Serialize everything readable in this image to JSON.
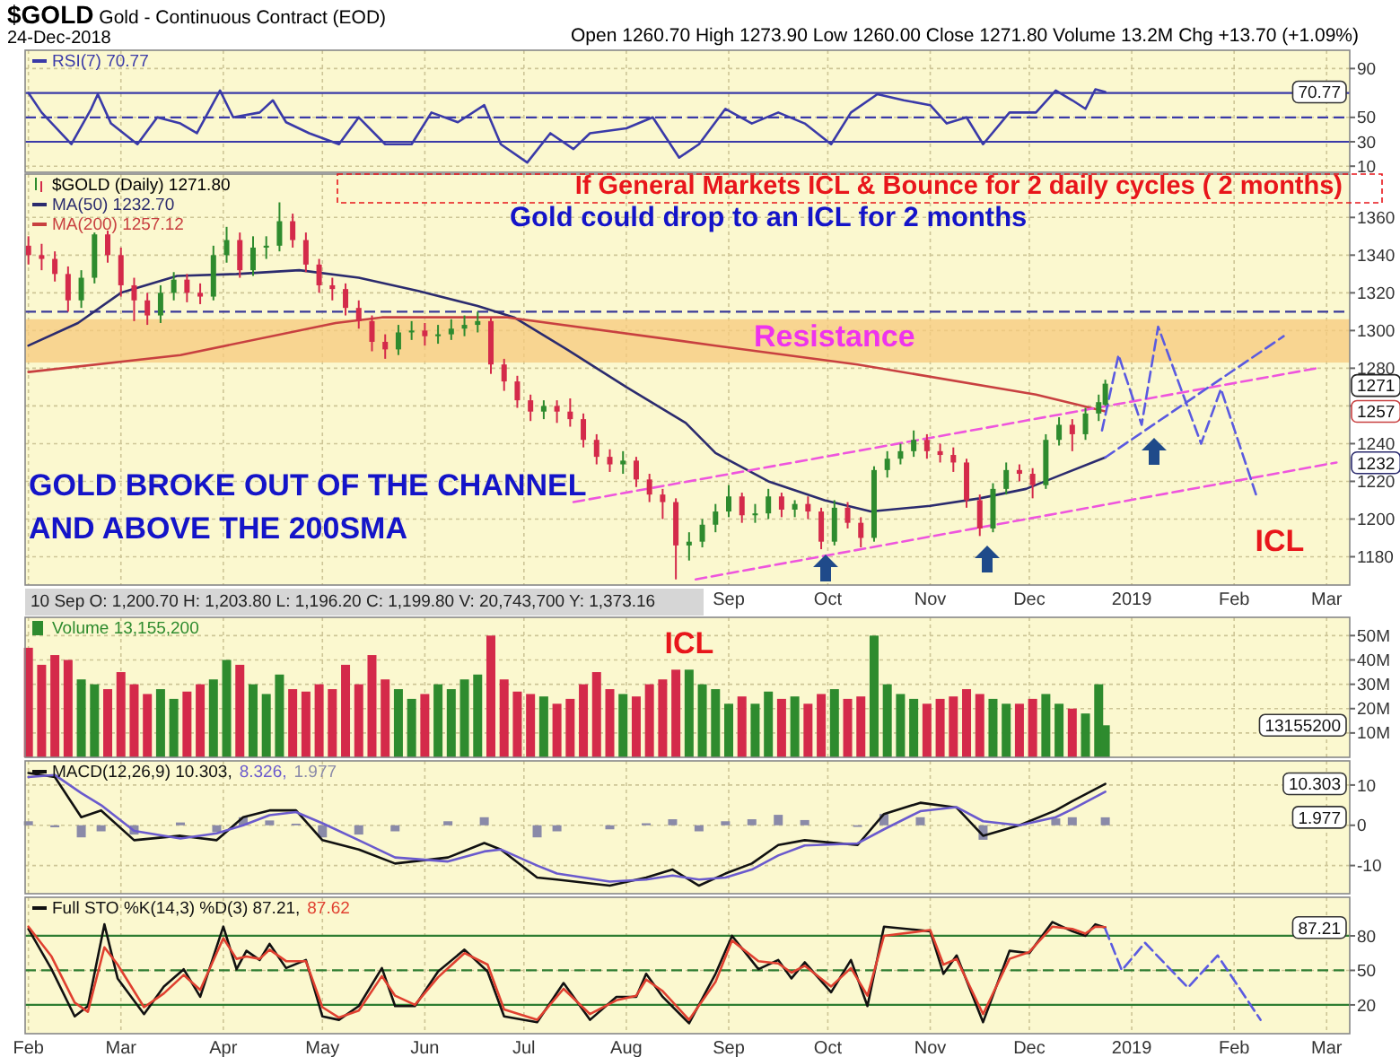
{
  "chart_data": [
    {
      "type": "line",
      "title": "$GOLD Gold - Continuous Contract (EOD)",
      "subtitle": "24-Dec-2018",
      "legend": "top left",
      "grid": true,
      "tick_labels": "y",
      "annotations": [
        "Open 1260.70 High 1273.90 Low 1260.00 Close 1271.80 Volume 13.2M Chg +13.70 (+1.09%)",
        "70.77"
      ],
      "xlim": [
        "2018-01-31",
        "2019-03-08"
      ],
      "xticks": [
        {
          "value": "2018-02-01",
          "label": null
        },
        {
          "value": "2018-03-01",
          "label": null
        },
        {
          "value": "2018-04-01",
          "label": null
        },
        {
          "value": "2018-05-01",
          "label": null
        },
        {
          "value": "2018-06-01",
          "label": null
        },
        {
          "value": "2018-07-01",
          "label": null
        },
        {
          "value": "2018-08-01",
          "label": null
        },
        {
          "value": "2018-09-01",
          "label": null
        },
        {
          "value": "2018-10-01",
          "label": null
        },
        {
          "value": "2018-11-01",
          "label": null
        },
        {
          "value": "2018-12-01",
          "label": null
        },
        {
          "value": "2019-01-01",
          "label": null
        },
        {
          "value": "2019-02-01",
          "label": null
        },
        {
          "value": "2019-03-01",
          "label": null
        }
      ],
      "ylim": [
        5,
        105
      ],
      "yticks": [
        10,
        30,
        50,
        90
      ],
      "ref_lines": [
        {
          "axis": "y",
          "value": 70,
          "color": "#3a3aa8"
        },
        {
          "axis": "y",
          "value": 30,
          "color": "#3a3aa8"
        },
        {
          "axis": "y",
          "value": 50,
          "color": "#3a3aa8",
          "line_style": "dashed"
        }
      ],
      "series": [
        {
          "name": "RSI(7) 70.77",
          "color": "#3a3aa8",
          "x": [
            "2018-02-01",
            "2018-02-05",
            "2018-02-14",
            "2018-02-20",
            "2018-02-22",
            "2018-02-26",
            "2018-03-06",
            "2018-03-12",
            "2018-03-19",
            "2018-03-24",
            "2018-03-31",
            "2018-04-04",
            "2018-04-12",
            "2018-04-16",
            "2018-04-20",
            "2018-04-27",
            "2018-05-06",
            "2018-05-12",
            "2018-05-20",
            "2018-05-28",
            "2018-06-03",
            "2018-06-11",
            "2018-06-19",
            "2018-06-24",
            "2018-07-02",
            "2018-07-09",
            "2018-07-16",
            "2018-07-21",
            "2018-08-01",
            "2018-08-09",
            "2018-08-17",
            "2018-08-23",
            "2018-08-31",
            "2018-09-08",
            "2018-09-16",
            "2018-09-24",
            "2018-10-02",
            "2018-10-08",
            "2018-10-16",
            "2018-10-24",
            "2018-11-01",
            "2018-11-06",
            "2018-11-12",
            "2018-11-17",
            "2018-11-25",
            "2018-12-03",
            "2018-12-09",
            "2018-12-14",
            "2018-12-18",
            "2018-12-21",
            "2018-12-24"
          ],
          "values": [
            70,
            54,
            28,
            57,
            69,
            45,
            28,
            50,
            45,
            37,
            72,
            50,
            54,
            64,
            46,
            37,
            28,
            50,
            28,
            28,
            54,
            46,
            60,
            28,
            13,
            37,
            24,
            37,
            41,
            50,
            17,
            28,
            57,
            45,
            54,
            45,
            28,
            54,
            69,
            64,
            60,
            45,
            50,
            28,
            54,
            54,
            72,
            64,
            57,
            73,
            70.77
          ]
        }
      ]
    },
    {
      "type": "candlestick",
      "legend": "top left",
      "grid": true,
      "xlim": [
        "2018-01-31",
        "2019-03-08"
      ],
      "xticks": [
        {
          "value": "2018-02-01",
          "label": null
        },
        {
          "value": "2018-03-01",
          "label": null
        },
        {
          "value": "2018-04-01",
          "label": null
        },
        {
          "value": "2018-05-01",
          "label": null
        },
        {
          "value": "2018-06-01",
          "label": null
        },
        {
          "value": "2018-07-01",
          "label": null
        },
        {
          "value": "2018-08-01",
          "label": null
        },
        {
          "value": "2018-09-01",
          "label": "Sep"
        },
        {
          "value": "2018-10-01",
          "label": "Oct"
        },
        {
          "value": "2018-11-01",
          "label": "Nov"
        },
        {
          "value": "2018-12-01",
          "label": "Dec"
        },
        {
          "value": "2019-01-01",
          "label": "2019"
        },
        {
          "value": "2019-02-01",
          "label": "Feb"
        },
        {
          "value": "2019-03-01",
          "label": "Mar"
        }
      ],
      "ylim": [
        1165,
        1383
      ],
      "yticks": [
        1180,
        1200,
        1220,
        1240,
        {
          "value": 1260,
          "label": null
        },
        1280,
        1300,
        1320,
        1340,
        1360
      ],
      "bands": [
        {
          "axis": "y",
          "from": 1283,
          "to": 1306,
          "label": "Resistance",
          "color": "#f7c97c"
        }
      ],
      "ref_lines": [
        {
          "axis": "y",
          "value": 1310,
          "color": "#3a3a9a",
          "line_style": "dashed"
        }
      ],
      "annotations": [
        "If General Markets ICL & Bounce for 2 daily cycles  ( 2 months)",
        "Gold could drop to an ICL for 2 months",
        "GOLD BROKE OUT OF THE CHANNEL AND ABOVE THE 200SMA",
        "ICL",
        "ICL",
        "10 Sep O: 1,200.70 H: 1,203.80 L: 1,196.20 C: 1,199.80 V: 20,743,700 Y: 1,373.16",
        "1271",
        "1257",
        "1232"
      ],
      "series": [
        {
          "name": "$GOLD (Daily) 1271.80",
          "colors": [
            "#d42a4a",
            "#d42a4a",
            "#d42a4a",
            "#d42a4a",
            "#2e8b2e",
            "#2e8b2e",
            "#d42a4a",
            "#d42a4a",
            "#d42a4a",
            "#d42a4a",
            "#2e8b2e",
            "#2e8b2e",
            "#d42a4a",
            "#d42a4a",
            "#2e8b2e",
            "#2e8b2e",
            "#d42a4a",
            "#2e8b2e",
            "#2e8b2e",
            "#2e8b2e",
            "#d42a4a",
            "#d42a4a",
            "#d42a4a",
            "#d42a4a",
            "#d42a4a",
            "#d42a4a",
            "#d42a4a",
            "#d42a4a",
            "#2e8b2e",
            "#2e8b2e",
            "#d42a4a",
            "#2e8b2e",
            "#2e8b2e",
            "#2e8b2e",
            "#2e8b2e",
            "#d42a4a",
            "#d42a4a",
            "#d42a4a",
            "#d42a4a",
            "#2e8b2e",
            "#d42a4a",
            "#d42a4a",
            "#d42a4a",
            "#d42a4a",
            "#d42a4a",
            "#2e8b2e",
            "#d42a4a",
            "#d42a4a",
            "#d42a4a",
            "#d42a4a",
            "#2e8b2e",
            "#2e8b2e",
            "#2e8b2e",
            "#2e8b2e",
            "#d42a4a",
            "#2e8b2e",
            "#2e8b2e",
            "#d42a4a",
            "#2e8b2e",
            "#d42a4a",
            "#d42a4a",
            "#2e8b2e",
            "#d42a4a",
            "#d42a4a",
            "#2e8b2e",
            "#2e8b2e",
            "#2e8b2e",
            "#2e8b2e",
            "#d42a4a",
            "#d42a4a",
            "#d42a4a",
            "#d42a4a",
            "#d42a4a",
            "#2e8b2e",
            "#2e8b2e",
            "#d42a4a",
            "#d42a4a",
            "#2e8b2e",
            "#2e8b2e",
            "#d42a4a",
            "#2e8b2e",
            "#2e8b2e",
            "#2e8b2e"
          ],
          "x": [
            "2018-02-01",
            "2018-02-05",
            "2018-02-09",
            "2018-02-13",
            "2018-02-17",
            "2018-02-21",
            "2018-02-25",
            "2018-03-01",
            "2018-03-05",
            "2018-03-09",
            "2018-03-13",
            "2018-03-17",
            "2018-03-21",
            "2018-03-25",
            "2018-03-29",
            "2018-04-02",
            "2018-04-06",
            "2018-04-10",
            "2018-04-14",
            "2018-04-18",
            "2018-04-22",
            "2018-04-26",
            "2018-04-30",
            "2018-05-04",
            "2018-05-08",
            "2018-05-12",
            "2018-05-16",
            "2018-05-20",
            "2018-05-24",
            "2018-05-28",
            "2018-06-01",
            "2018-06-05",
            "2018-06-09",
            "2018-06-13",
            "2018-06-17",
            "2018-06-21",
            "2018-06-25",
            "2018-06-29",
            "2018-07-03",
            "2018-07-07",
            "2018-07-11",
            "2018-07-15",
            "2018-07-19",
            "2018-07-23",
            "2018-07-27",
            "2018-07-31",
            "2018-08-04",
            "2018-08-08",
            "2018-08-12",
            "2018-08-16",
            "2018-08-20",
            "2018-08-24",
            "2018-08-28",
            "2018-09-01",
            "2018-09-05",
            "2018-09-09",
            "2018-09-13",
            "2018-09-17",
            "2018-09-21",
            "2018-09-25",
            "2018-09-29",
            "2018-10-03",
            "2018-10-07",
            "2018-10-11",
            "2018-10-15",
            "2018-10-19",
            "2018-10-23",
            "2018-10-27",
            "2018-10-31",
            "2018-11-04",
            "2018-11-08",
            "2018-11-12",
            "2018-11-16",
            "2018-11-20",
            "2018-11-24",
            "2018-11-28",
            "2018-12-02",
            "2018-12-06",
            "2018-12-10",
            "2018-12-14",
            "2018-12-18",
            "2018-12-22",
            "2018-12-24"
          ],
          "ohlc": [
            [
              1345,
              1350,
              1335,
              1340
            ],
            [
              1340,
              1346,
              1332,
              1338
            ],
            [
              1338,
              1342,
              1326,
              1330
            ],
            [
              1330,
              1334,
              1310,
              1316
            ],
            [
              1316,
              1332,
              1312,
              1328
            ],
            [
              1328,
              1352,
              1325,
              1351
            ],
            [
              1351,
              1353,
              1336,
              1340
            ],
            [
              1340,
              1344,
              1318,
              1324
            ],
            [
              1324,
              1328,
              1305,
              1316
            ],
            [
              1316,
              1320,
              1303,
              1308
            ],
            [
              1308,
              1324,
              1304,
              1320
            ],
            [
              1320,
              1331,
              1316,
              1327
            ],
            [
              1327,
              1330,
              1315,
              1320
            ],
            [
              1320,
              1325,
              1314,
              1318
            ],
            [
              1318,
              1345,
              1316,
              1340
            ],
            [
              1340,
              1355,
              1336,
              1348
            ],
            [
              1348,
              1352,
              1328,
              1332
            ],
            [
              1332,
              1350,
              1329,
              1344
            ],
            [
              1344,
              1350,
              1338,
              1345
            ],
            [
              1345,
              1368,
              1342,
              1358
            ],
            [
              1358,
              1362,
              1344,
              1348
            ],
            [
              1348,
              1352,
              1331,
              1335
            ],
            [
              1335,
              1338,
              1320,
              1324
            ],
            [
              1324,
              1328,
              1316,
              1322
            ],
            [
              1322,
              1325,
              1308,
              1312
            ],
            [
              1312,
              1316,
              1301,
              1305
            ],
            [
              1305,
              1308,
              1289,
              1294
            ],
            [
              1294,
              1298,
              1285,
              1290
            ],
            [
              1290,
              1303,
              1287,
              1299
            ],
            [
              1299,
              1305,
              1295,
              1300
            ],
            [
              1300,
              1304,
              1292,
              1297
            ],
            [
              1297,
              1303,
              1293,
              1298
            ],
            [
              1298,
              1306,
              1295,
              1301
            ],
            [
              1301,
              1308,
              1297,
              1303
            ],
            [
              1303,
              1310,
              1299,
              1305
            ],
            [
              1305,
              1307,
              1277,
              1282
            ],
            [
              1282,
              1285,
              1268,
              1273
            ],
            [
              1273,
              1276,
              1259,
              1263
            ],
            [
              1263,
              1266,
              1252,
              1257
            ],
            [
              1257,
              1263,
              1253,
              1260
            ],
            [
              1260,
              1263,
              1251,
              1257
            ],
            [
              1257,
              1264,
              1249,
              1253
            ],
            [
              1253,
              1256,
              1238,
              1242
            ],
            [
              1242,
              1245,
              1229,
              1233
            ],
            [
              1233,
              1237,
              1225,
              1229
            ],
            [
              1229,
              1236,
              1224,
              1231
            ],
            [
              1231,
              1233,
              1217,
              1221
            ],
            [
              1221,
              1224,
              1209,
              1213
            ],
            [
              1213,
              1216,
              1200,
              1209
            ],
            [
              1209,
              1211,
              1168,
              1186
            ],
            [
              1186,
              1193,
              1178,
              1188
            ],
            [
              1188,
              1200,
              1185,
              1197
            ],
            [
              1197,
              1208,
              1193,
              1204
            ],
            [
              1204,
              1218,
              1201,
              1212
            ],
            [
              1212,
              1214,
              1198,
              1202
            ],
            [
              1202,
              1208,
              1198,
              1203
            ],
            [
              1203,
              1216,
              1200,
              1212
            ],
            [
              1212,
              1214,
              1201,
              1205
            ],
            [
              1205,
              1210,
              1201,
              1208
            ],
            [
              1208,
              1212,
              1200,
              1204
            ],
            [
              1204,
              1206,
              1184,
              1188
            ],
            [
              1188,
              1210,
              1186,
              1206
            ],
            [
              1206,
              1209,
              1195,
              1198
            ],
            [
              1198,
              1201,
              1185,
              1190
            ],
            [
              1190,
              1228,
              1188,
              1226
            ],
            [
              1226,
              1236,
              1222,
              1232
            ],
            [
              1232,
              1240,
              1229,
              1236
            ],
            [
              1236,
              1247,
              1233,
              1242
            ],
            [
              1242,
              1245,
              1232,
              1236
            ],
            [
              1236,
              1240,
              1230,
              1234
            ],
            [
              1234,
              1238,
              1225,
              1230
            ],
            [
              1230,
              1232,
              1206,
              1210
            ],
            [
              1210,
              1213,
              1191,
              1195
            ],
            [
              1195,
              1219,
              1193,
              1216
            ],
            [
              1216,
              1230,
              1213,
              1226
            ],
            [
              1226,
              1229,
              1220,
              1224
            ],
            [
              1224,
              1227,
              1211,
              1218
            ],
            [
              1218,
              1245,
              1216,
              1242
            ],
            [
              1242,
              1254,
              1239,
              1250
            ],
            [
              1250,
              1253,
              1236,
              1245
            ],
            [
              1245,
              1259,
              1242,
              1256
            ],
            [
              1256,
              1266,
              1252,
              1262
            ],
            [
              1260.7,
              1273.9,
              1260,
              1271.8
            ]
          ]
        },
        {
          "type": "line",
          "name": "MA(50) 1232.70",
          "color": "#2b2b6e",
          "x": [
            "2018-02-01",
            "2018-02-16",
            "2018-03-01",
            "2018-03-18",
            "2018-04-05",
            "2018-04-24",
            "2018-05-12",
            "2018-05-30",
            "2018-06-17",
            "2018-06-28",
            "2018-07-14",
            "2018-08-01",
            "2018-08-19",
            "2018-08-28",
            "2018-09-13",
            "2018-09-30",
            "2018-10-14",
            "2018-11-01",
            "2018-11-16",
            "2018-11-30",
            "2018-12-10",
            "2018-12-24"
          ],
          "values": [
            1292,
            1304,
            1320,
            1329,
            1330,
            1332,
            1328,
            1321,
            1313,
            1307,
            1290,
            1270,
            1251,
            1235,
            1220,
            1210,
            1204,
            1207,
            1211,
            1216,
            1223,
            1232.7
          ]
        },
        {
          "type": "line",
          "name": "MA(200) 1257.12",
          "color": "#c84040",
          "x": [
            "2018-02-01",
            "2018-03-19",
            "2018-05-05",
            "2018-05-19",
            "2018-06-26",
            "2018-08-28",
            "2018-10-10",
            "2018-12-03",
            "2018-12-24"
          ],
          "values": [
            1278,
            1287,
            1304,
            1307,
            1307,
            1292,
            1282,
            1266,
            1257.12
          ]
        },
        {
          "type": "line",
          "color": "#ee55dd",
          "line_style": "dashed",
          "x": [
            "2018-07-16",
            "2019-02-26"
          ],
          "values": [
            1209,
            1280
          ]
        },
        {
          "type": "line",
          "color": "#ee55dd",
          "line_style": "dashed",
          "x": [
            "2018-08-22",
            "2019-03-04"
          ],
          "values": [
            1168,
            1230
          ]
        },
        {
          "type": "line",
          "color": "#5a5ae0",
          "line_style": "dashed",
          "x": [
            "2018-12-23",
            "2018-12-28",
            "2019-01-04",
            "2019-01-09",
            "2019-01-22",
            "2019-01-28",
            "2019-02-08"
          ],
          "values": [
            1247,
            1287,
            1250,
            1302,
            1240,
            1269,
            1211
          ]
        },
        {
          "type": "line",
          "color": "#5a5ae0",
          "line_style": "dashed",
          "x": [
            "2018-12-24",
            "2019-02-16"
          ],
          "values": [
            1232.7,
            1297
          ]
        }
      ]
    },
    {
      "type": "bar",
      "legend": "top left",
      "grid": true,
      "tick_labels": "y",
      "xlim": [
        "2018-01-31",
        "2019-03-08"
      ],
      "xticks": [
        {
          "value": "2018-02-01",
          "label": null
        },
        {
          "value": "2018-03-01",
          "label": null
        },
        {
          "value": "2018-04-01",
          "label": null
        },
        {
          "value": "2018-05-01",
          "label": null
        },
        {
          "value": "2018-06-01",
          "label": null
        },
        {
          "value": "2018-07-01",
          "label": null
        },
        {
          "value": "2018-08-01",
          "label": null
        },
        {
          "value": "2018-09-01",
          "label": null
        },
        {
          "value": "2018-10-01",
          "label": null
        },
        {
          "value": "2018-11-01",
          "label": null
        },
        {
          "value": "2018-12-01",
          "label": null
        },
        {
          "value": "2019-01-01",
          "label": null
        },
        {
          "value": "2019-02-01",
          "label": null
        },
        {
          "value": "2019-03-01",
          "label": null
        }
      ],
      "ylim": [
        0,
        57.5
      ],
      "yticks": [
        {
          "value": 10,
          "label": "10M"
        },
        {
          "value": 20,
          "label": "20M"
        },
        {
          "value": 30,
          "label": "30M"
        },
        {
          "value": 40,
          "label": "40M"
        },
        {
          "value": 50,
          "label": "50M"
        }
      ],
      "annotations": [
        "13155200"
      ],
      "x": [
        "2018-02-01",
        "2018-02-05",
        "2018-02-09",
        "2018-02-13",
        "2018-02-17",
        "2018-02-21",
        "2018-02-25",
        "2018-03-01",
        "2018-03-05",
        "2018-03-09",
        "2018-03-13",
        "2018-03-17",
        "2018-03-21",
        "2018-03-25",
        "2018-03-29",
        "2018-04-02",
        "2018-04-06",
        "2018-04-10",
        "2018-04-14",
        "2018-04-18",
        "2018-04-22",
        "2018-04-26",
        "2018-04-30",
        "2018-05-04",
        "2018-05-08",
        "2018-05-12",
        "2018-05-16",
        "2018-05-20",
        "2018-05-24",
        "2018-05-28",
        "2018-06-01",
        "2018-06-05",
        "2018-06-09",
        "2018-06-13",
        "2018-06-17",
        "2018-06-21",
        "2018-06-25",
        "2018-06-29",
        "2018-07-03",
        "2018-07-07",
        "2018-07-11",
        "2018-07-15",
        "2018-07-19",
        "2018-07-23",
        "2018-07-27",
        "2018-07-31",
        "2018-08-04",
        "2018-08-08",
        "2018-08-12",
        "2018-08-16",
        "2018-08-20",
        "2018-08-24",
        "2018-08-28",
        "2018-09-01",
        "2018-09-05",
        "2018-09-09",
        "2018-09-13",
        "2018-09-17",
        "2018-09-21",
        "2018-09-25",
        "2018-09-29",
        "2018-10-03",
        "2018-10-07",
        "2018-10-11",
        "2018-10-15",
        "2018-10-19",
        "2018-10-23",
        "2018-10-27",
        "2018-10-31",
        "2018-11-04",
        "2018-11-08",
        "2018-11-12",
        "2018-11-16",
        "2018-11-20",
        "2018-11-24",
        "2018-11-28",
        "2018-12-02",
        "2018-12-06",
        "2018-12-10",
        "2018-12-14",
        "2018-12-18",
        "2018-12-22",
        "2018-12-24"
      ],
      "series": [
        {
          "name": "Volume 13,155,200",
          "color": "#2e8b2e",
          "values": [
            45,
            38,
            42,
            40,
            32,
            30,
            28,
            35,
            30,
            26,
            28,
            24,
            27,
            30,
            32,
            40,
            38,
            30,
            26,
            34,
            28,
            27,
            30,
            28,
            38,
            30,
            42,
            32,
            28,
            24,
            26,
            30,
            28,
            32,
            34,
            50,
            32,
            27,
            26,
            25,
            22,
            24,
            30,
            35,
            28,
            26,
            25,
            30,
            32,
            36,
            36,
            30,
            28,
            22,
            25,
            22,
            27,
            24,
            25,
            22,
            26,
            28,
            24,
            25,
            50,
            30,
            26,
            24,
            22,
            24,
            25,
            28,
            26,
            24,
            22,
            22,
            24,
            26,
            22,
            20,
            18,
            30,
            13.155
          ],
          "colors": [
            "#d42a4a",
            "#d42a4a",
            "#d42a4a",
            "#d42a4a",
            "#2e8b2e",
            "#2e8b2e",
            "#d42a4a",
            "#d42a4a",
            "#d42a4a",
            "#d42a4a",
            "#2e8b2e",
            "#2e8b2e",
            "#d42a4a",
            "#d42a4a",
            "#2e8b2e",
            "#2e8b2e",
            "#d42a4a",
            "#2e8b2e",
            "#2e8b2e",
            "#2e8b2e",
            "#d42a4a",
            "#d42a4a",
            "#d42a4a",
            "#d42a4a",
            "#d42a4a",
            "#d42a4a",
            "#d42a4a",
            "#d42a4a",
            "#2e8b2e",
            "#2e8b2e",
            "#d42a4a",
            "#2e8b2e",
            "#2e8b2e",
            "#2e8b2e",
            "#2e8b2e",
            "#d42a4a",
            "#d42a4a",
            "#d42a4a",
            "#d42a4a",
            "#2e8b2e",
            "#d42a4a",
            "#d42a4a",
            "#d42a4a",
            "#d42a4a",
            "#d42a4a",
            "#2e8b2e",
            "#d42a4a",
            "#d42a4a",
            "#d42a4a",
            "#d42a4a",
            "#2e8b2e",
            "#2e8b2e",
            "#2e8b2e",
            "#2e8b2e",
            "#d42a4a",
            "#2e8b2e",
            "#2e8b2e",
            "#d42a4a",
            "#2e8b2e",
            "#d42a4a",
            "#d42a4a",
            "#2e8b2e",
            "#d42a4a",
            "#d42a4a",
            "#2e8b2e",
            "#2e8b2e",
            "#2e8b2e",
            "#2e8b2e",
            "#d42a4a",
            "#d42a4a",
            "#d42a4a",
            "#d42a4a",
            "#d42a4a",
            "#2e8b2e",
            "#2e8b2e",
            "#d42a4a",
            "#d42a4a",
            "#2e8b2e",
            "#2e8b2e",
            "#d42a4a",
            "#2e8b2e",
            "#2e8b2e",
            "#2e8b2e"
          ]
        }
      ]
    },
    {
      "type": "line",
      "legend": "top left",
      "grid": true,
      "tick_labels": "y",
      "xlim": [
        "2018-01-31",
        "2019-03-08"
      ],
      "xticks": [
        {
          "value": "2018-02-01",
          "label": null
        },
        {
          "value": "2018-03-01",
          "label": null
        },
        {
          "value": "2018-04-01",
          "label": null
        },
        {
          "value": "2018-05-01",
          "label": null
        },
        {
          "value": "2018-06-01",
          "label": null
        },
        {
          "value": "2018-07-01",
          "label": null
        },
        {
          "value": "2018-08-01",
          "label": null
        },
        {
          "value": "2018-09-01",
          "label": null
        },
        {
          "value": "2018-10-01",
          "label": null
        },
        {
          "value": "2018-11-01",
          "label": null
        },
        {
          "value": "2018-12-01",
          "label": null
        },
        {
          "value": "2019-01-01",
          "label": null
        },
        {
          "value": "2019-02-01",
          "label": null
        },
        {
          "value": "2019-03-01",
          "label": null
        }
      ],
      "ylim": [
        -17,
        16
      ],
      "yticks": [
        10,
        0,
        -10
      ],
      "annotations": [
        "10.303",
        "1.977"
      ],
      "x": [
        "2018-02-01",
        "2018-02-09",
        "2018-02-17",
        "2018-02-23",
        "2018-03-05",
        "2018-03-19",
        "2018-03-30",
        "2018-04-07",
        "2018-04-15",
        "2018-04-23",
        "2018-05-01",
        "2018-05-12",
        "2018-05-23",
        "2018-06-08",
        "2018-06-19",
        "2018-06-24",
        "2018-07-05",
        "2018-07-11",
        "2018-07-27",
        "2018-08-07",
        "2018-08-15",
        "2018-08-23",
        "2018-08-31",
        "2018-09-08",
        "2018-09-16",
        "2018-09-24",
        "2018-10-10",
        "2018-10-18",
        "2018-10-29",
        "2018-11-09",
        "2018-11-17",
        "2018-11-28",
        "2018-12-09",
        "2018-12-14",
        "2018-12-24"
      ],
      "series": [
        {
          "name": "MACD(12,26,9) 10.303,",
          "color": "#111111",
          "values": [
            13,
            12,
            2,
            3.7,
            -3.7,
            -2.6,
            -3.7,
            2,
            3.7,
            3.7,
            -3.7,
            -6,
            -9.5,
            -8,
            -4.4,
            -6,
            -13,
            -13.5,
            -15,
            -13,
            -11,
            -15,
            -12,
            -9.5,
            -4.9,
            -3.7,
            -4.9,
            2.8,
            5.6,
            4.4,
            -2.6,
            0,
            3.7,
            6,
            10.303
          ]
        },
        {
          "name": "8.326,",
          "color": "#6a5acd",
          "values": [
            12,
            12.5,
            8,
            5,
            -1.4,
            -3.3,
            -2,
            0,
            2.5,
            3.3,
            0.5,
            -3.7,
            -8,
            -9,
            -6.5,
            -6,
            -10,
            -12,
            -14,
            -13.5,
            -12.5,
            -13.5,
            -13,
            -11,
            -7.5,
            -5,
            -4.5,
            -1,
            3.5,
            4.5,
            1,
            0,
            2,
            4,
            8.326
          ]
        },
        {
          "type": "bar",
          "name": "1.977",
          "color": "#8a8aa8",
          "values": [
            1,
            -0.5,
            -3,
            -1.5,
            -2.3,
            0.7,
            -1.7,
            2,
            1.2,
            0.4,
            -3,
            -2.3,
            -1.5,
            1,
            2,
            0,
            -3,
            -1.5,
            -1,
            0.5,
            1.5,
            -1.5,
            1,
            1.5,
            2.6,
            1.3,
            -0.4,
            2.8,
            2,
            null,
            -3.6,
            0,
            1.7,
            2,
            1.977
          ]
        }
      ]
    },
    {
      "type": "line",
      "legend": "top left",
      "grid": true,
      "xlim": [
        "2018-01-31",
        "2019-03-08"
      ],
      "xticks": [
        {
          "value": "2018-02-01",
          "label": "Feb"
        },
        {
          "value": "2018-03-01",
          "label": "Mar"
        },
        {
          "value": "2018-04-01",
          "label": "Apr"
        },
        {
          "value": "2018-05-01",
          "label": "May"
        },
        {
          "value": "2018-06-01",
          "label": "Jun"
        },
        {
          "value": "2018-07-01",
          "label": "Jul"
        },
        {
          "value": "2018-08-01",
          "label": "Aug"
        },
        {
          "value": "2018-09-01",
          "label": "Sep"
        },
        {
          "value": "2018-10-01",
          "label": "Oct"
        },
        {
          "value": "2018-11-01",
          "label": "Nov"
        },
        {
          "value": "2018-12-01",
          "label": "Dec"
        },
        {
          "value": "2019-01-01",
          "label": "2019"
        },
        {
          "value": "2019-02-01",
          "label": "Feb"
        },
        {
          "value": "2019-03-01",
          "label": "Mar"
        }
      ],
      "ylim": [
        -5,
        113.5
      ],
      "yticks": [
        20,
        50,
        80
      ],
      "ref_lines": [
        {
          "axis": "y",
          "value": 80,
          "color": "#2e7d32"
        },
        {
          "axis": "y",
          "value": 20,
          "color": "#2e7d32"
        },
        {
          "axis": "y",
          "value": 50,
          "color": "#2e7d32",
          "line_style": "dashed"
        }
      ],
      "annotations": [
        "87.21"
      ],
      "x": [
        "2018-02-01",
        "2018-02-08",
        "2018-02-15",
        "2018-02-19",
        "2018-02-24",
        "2018-02-28",
        "2018-03-08",
        "2018-03-14",
        "2018-03-20",
        "2018-03-25",
        "2018-04-01",
        "2018-04-05",
        "2018-04-08",
        "2018-04-12",
        "2018-04-15",
        "2018-04-20",
        "2018-04-26",
        "2018-05-01",
        "2018-05-06",
        "2018-05-12",
        "2018-05-19",
        "2018-05-23",
        "2018-05-29",
        "2018-06-05",
        "2018-06-13",
        "2018-06-20",
        "2018-06-25",
        "2018-07-05",
        "2018-07-13",
        "2018-07-21",
        "2018-07-29",
        "2018-08-04",
        "2018-08-07",
        "2018-08-12",
        "2018-08-20",
        "2018-08-28",
        "2018-09-02",
        "2018-09-10",
        "2018-09-16",
        "2018-09-20",
        "2018-09-24",
        "2018-10-02",
        "2018-10-08",
        "2018-10-13",
        "2018-10-18",
        "2018-11-01",
        "2018-11-05",
        "2018-11-09",
        "2018-11-17",
        "2018-11-25",
        "2018-12-01",
        "2018-12-08",
        "2018-12-14",
        "2018-12-18",
        "2018-12-21",
        "2018-12-24"
      ],
      "series": [
        {
          "name": "Full STO %K(14,3) %D(3) 87.21,",
          "color": "#111111",
          "values": [
            86,
            51,
            10,
            19,
            90,
            43,
            12,
            36,
            51,
            27,
            88,
            51,
            67,
            59,
            73,
            52,
            59,
            10,
            7,
            19,
            52,
            19,
            19,
            49,
            68,
            49,
            10,
            5,
            39,
            7,
            27,
            27,
            47,
            27,
            4,
            47,
            80,
            51,
            59,
            43,
            57,
            31,
            59,
            19,
            88,
            84,
            47,
            63,
            5,
            67,
            65,
            92,
            84,
            80,
            90,
            87.21
          ]
        },
        {
          "name": "87.62",
          "color": "#e04030",
          "values": [
            88,
            62,
            22,
            14,
            70,
            55,
            18,
            30,
            46,
            33,
            78,
            60,
            62,
            60,
            68,
            58,
            58,
            18,
            9,
            15,
            45,
            28,
            20,
            44,
            65,
            55,
            16,
            7,
            34,
            12,
            24,
            28,
            42,
            32,
            7,
            40,
            76,
            58,
            56,
            48,
            54,
            36,
            52,
            28,
            80,
            85,
            55,
            60,
            12,
            60,
            66,
            88,
            86,
            82,
            88,
            87.62
          ]
        },
        {
          "color": "#5a5ae0",
          "line_style": "dashed",
          "x": [
            "2018-12-24",
            "2018-12-29",
            "2019-01-05",
            "2019-01-18",
            "2019-01-27",
            "2019-02-09"
          ],
          "values": [
            86,
            50,
            74,
            35,
            63,
            7
          ]
        }
      ]
    }
  ]
}
